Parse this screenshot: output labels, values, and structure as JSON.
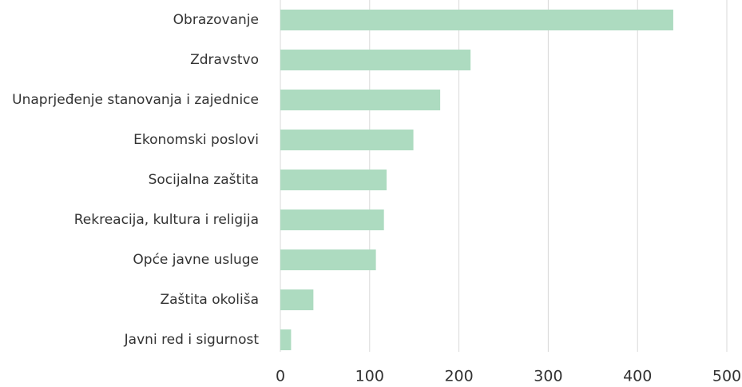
{
  "chart_data": {
    "type": "bar",
    "orientation": "horizontal",
    "categories": [
      "Obrazovanje",
      "Zdravstvo",
      "Unaprjeđenje stanovanja i zajednice",
      "Ekonomski poslovi",
      "Socijalna zaštita",
      "Rekreacija, kultura i religija",
      "Opće javne usluge",
      "Zaštita okoliša",
      "Javni red i sigurnost"
    ],
    "values": [
      440,
      213,
      179,
      149,
      119,
      116,
      107,
      37,
      12
    ],
    "color": "#addbc0",
    "xlim": [
      0,
      500
    ],
    "xticks": [
      0,
      100,
      200,
      300,
      400,
      500
    ],
    "grid": true
  }
}
